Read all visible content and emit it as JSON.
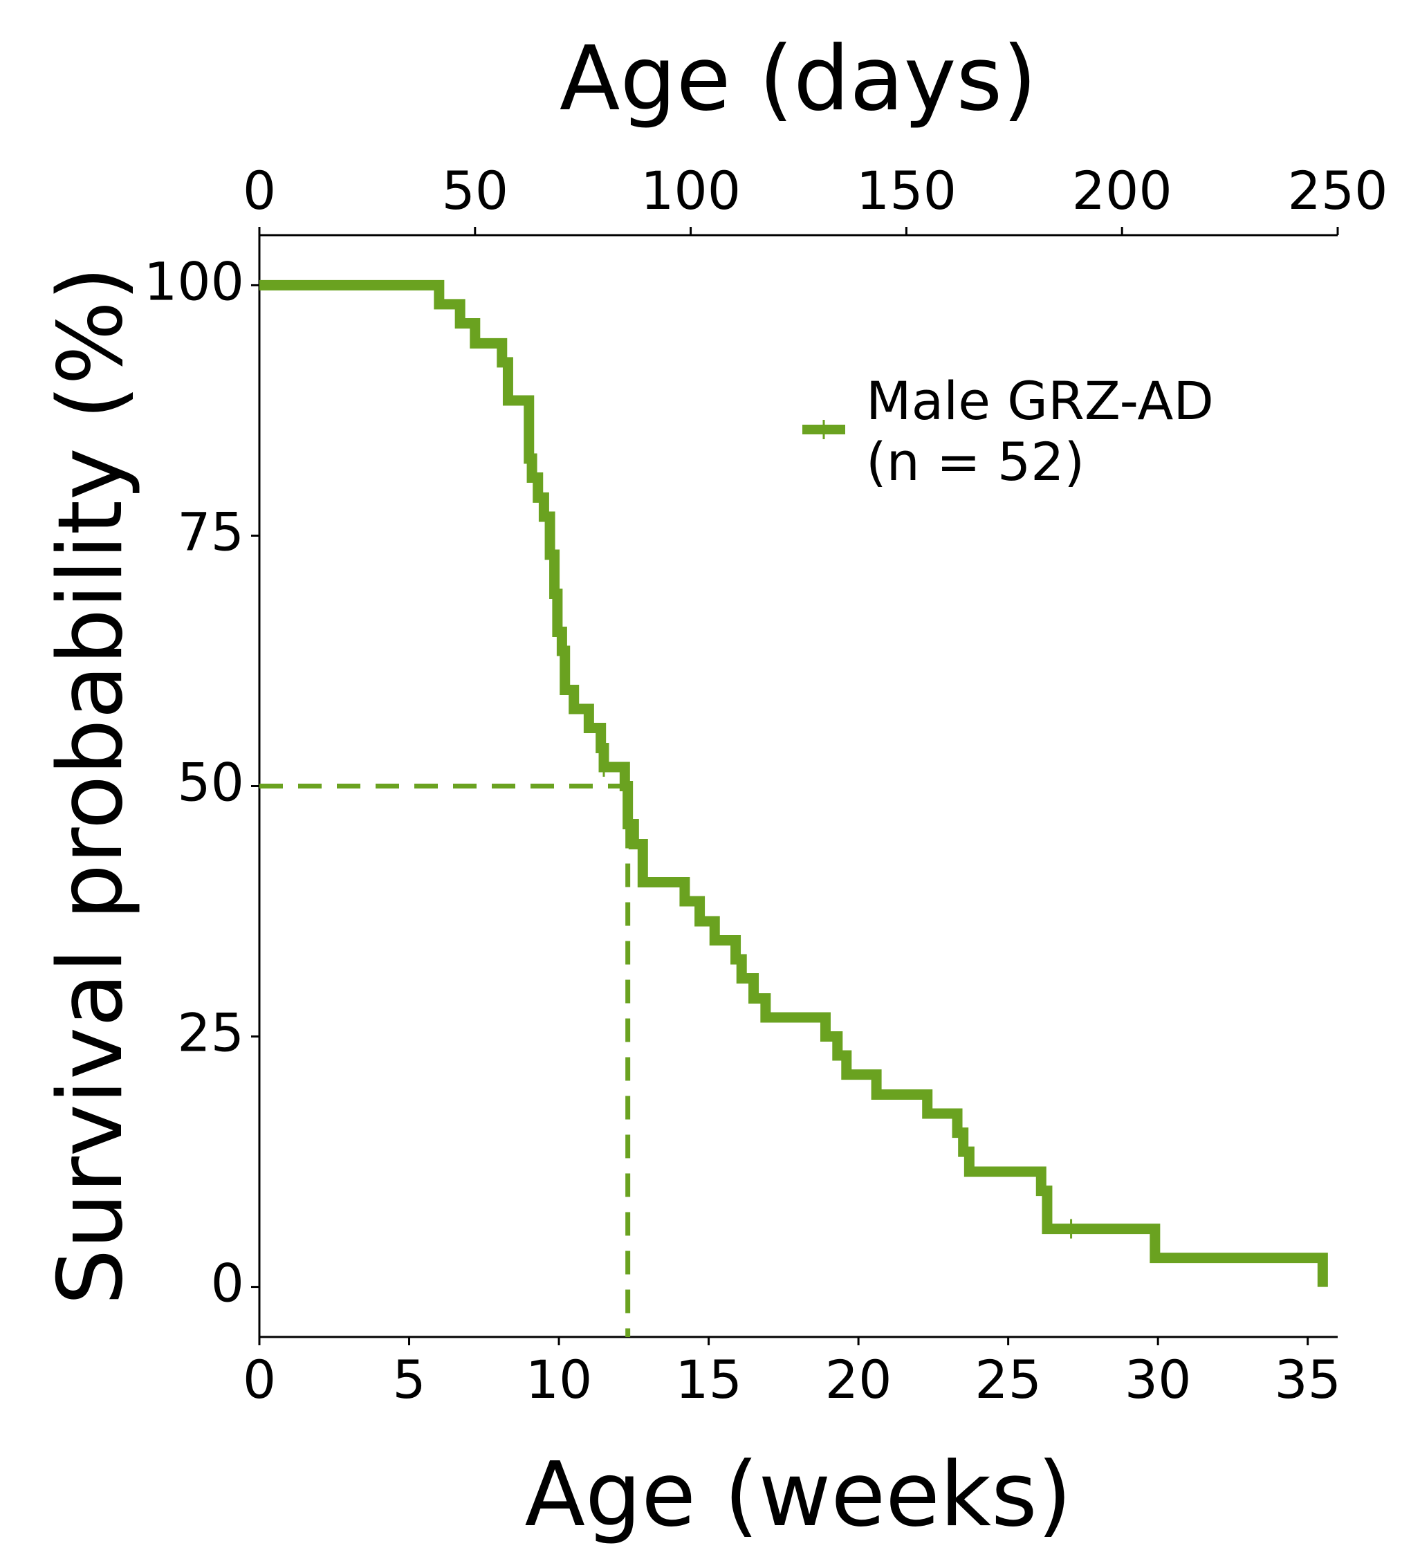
{
  "chart_data": {
    "type": "line",
    "step": true,
    "xlabel": "Age (weeks)",
    "x2label": "Age (days)",
    "ylabel": "Survival probability (%)",
    "xlim": [
      0,
      36
    ],
    "x2lim": [
      0,
      250
    ],
    "ylim": [
      -5,
      105
    ],
    "xticks": [
      0,
      5,
      10,
      15,
      20,
      25,
      30,
      35
    ],
    "x2ticks": [
      0,
      50,
      100,
      150,
      200,
      250
    ],
    "yticks": [
      0,
      25,
      50,
      75,
      100
    ],
    "grid": false,
    "legend_position": "upper-right",
    "series": [
      {
        "name": "Male GRZ-AD\n(n = 52)",
        "color": "#6aa220",
        "x": [
          0,
          6.0,
          6.7,
          7.2,
          8.1,
          8.3,
          9.0,
          9.1,
          9.3,
          9.5,
          9.7,
          9.85,
          9.95,
          10.1,
          10.2,
          10.5,
          11.0,
          11.4,
          11.5,
          12.2,
          12.3,
          12.5,
          12.8,
          14.2,
          14.7,
          15.2,
          15.9,
          16.1,
          16.5,
          16.9,
          18.9,
          19.3,
          19.6,
          20.6,
          22.3,
          23.3,
          23.5,
          23.7,
          26.1,
          26.3,
          29.9,
          35.5
        ],
        "y": [
          100,
          98.1,
          96.2,
          94.2,
          92.3,
          88.5,
          82.7,
          80.8,
          78.8,
          76.9,
          73.1,
          69.2,
          65.4,
          63.5,
          59.6,
          57.7,
          55.8,
          53.8,
          51.9,
          50.0,
          46.2,
          44.2,
          40.4,
          38.5,
          36.5,
          34.6,
          32.7,
          30.8,
          28.8,
          26.9,
          25.0,
          23.1,
          21.2,
          19.2,
          17.3,
          15.4,
          13.5,
          11.5,
          9.6,
          5.8,
          2.9,
          0
        ],
        "censored_x": [
          9.0,
          11.5,
          27.1
        ]
      }
    ],
    "median": {
      "x": 12.3,
      "y": 50,
      "style": "dashed"
    }
  }
}
